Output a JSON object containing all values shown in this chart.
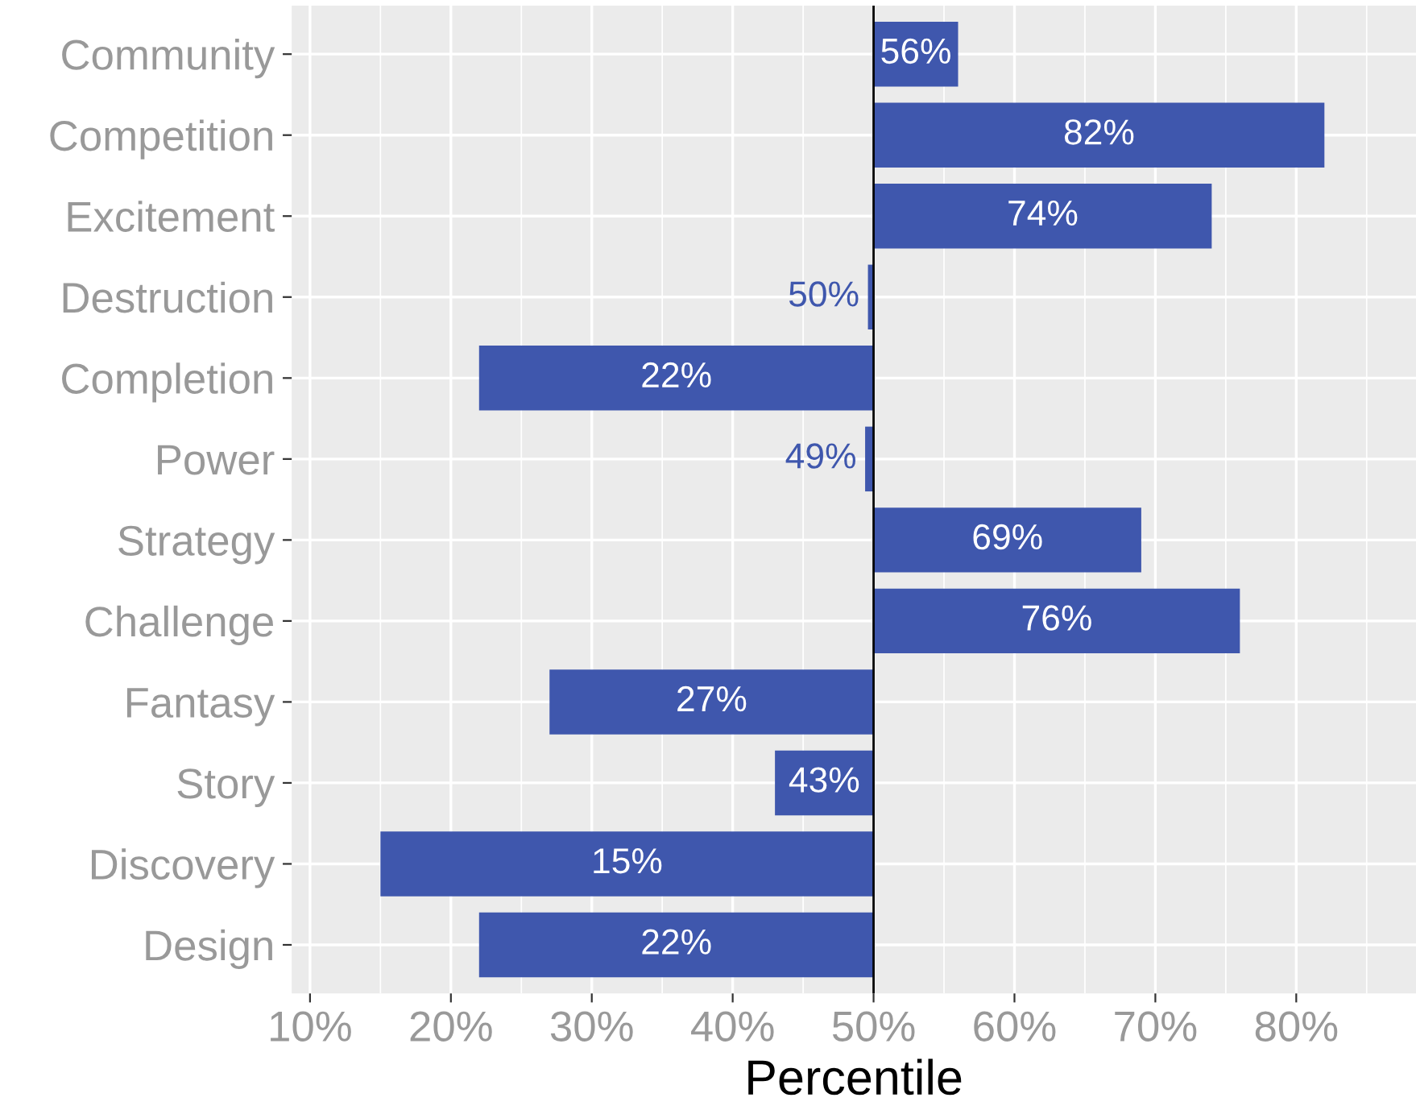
{
  "chart_data": {
    "type": "bar",
    "orientation": "horizontal",
    "xlabel": "Percentile",
    "categories": [
      "Community",
      "Competition",
      "Excitement",
      "Destruction",
      "Completion",
      "Power",
      "Strategy",
      "Challenge",
      "Fantasy",
      "Story",
      "Discovery",
      "Design"
    ],
    "base": [
      50,
      50,
      50,
      50,
      50,
      50,
      50,
      50,
      50,
      50,
      50,
      50
    ],
    "values": [
      6,
      32,
      24,
      -0.4,
      -28,
      -0.6,
      19,
      26,
      -23,
      -7,
      -35,
      -28
    ],
    "value_labels": [
      "56%",
      "82%",
      "74%",
      "50%",
      "22%",
      "49%",
      "69%",
      "76%",
      "27%",
      "43%",
      "15%",
      "22%"
    ],
    "color": "#3f57ad",
    "xlim": [
      8.7,
      88.5
    ],
    "xticks": [
      {
        "value": 10,
        "label": "10%"
      },
      {
        "value": 20,
        "label": "20%"
      },
      {
        "value": 30,
        "label": "30%"
      },
      {
        "value": 40,
        "label": "40%"
      },
      {
        "value": 50,
        "label": "50%"
      },
      {
        "value": 60,
        "label": "60%"
      },
      {
        "value": 70,
        "label": "70%"
      },
      {
        "value": 80,
        "label": "80%"
      }
    ],
    "ref_lines": [
      {
        "axis": "x",
        "value": 50,
        "color": "#000000"
      }
    ],
    "grid": true
  }
}
